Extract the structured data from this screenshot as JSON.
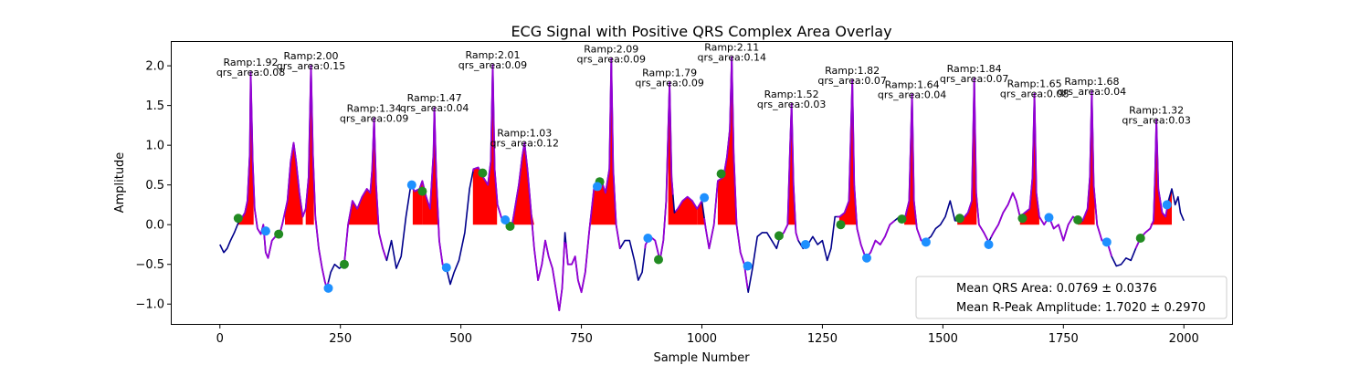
{
  "chart_data": {
    "type": "line",
    "title": "ECG Signal with Positive QRS Complex Area Overlay",
    "xlabel": "Sample Number",
    "ylabel": "Amplitude",
    "xlim": [
      -100,
      2100
    ],
    "ylim": [
      -1.25,
      2.3
    ],
    "xticks": [
      0,
      250,
      500,
      750,
      1000,
      1250,
      1500,
      1750,
      2000
    ],
    "yticks": [
      -1.0,
      -0.5,
      0.0,
      0.5,
      1.0,
      1.5,
      2.0
    ],
    "colors": {
      "signal": "#00008b",
      "qrs": "#9400d3",
      "area": "#ff0000",
      "onset": "#228b22",
      "offset": "#1e90ff"
    },
    "ecg_points": [
      [
        0,
        -0.25
      ],
      [
        8,
        -0.35
      ],
      [
        15,
        -0.3
      ],
      [
        22,
        -0.2
      ],
      [
        30,
        -0.1
      ],
      [
        38,
        0.02
      ],
      [
        45,
        0.08
      ],
      [
        52,
        0.15
      ],
      [
        57,
        0.3
      ],
      [
        62,
        0.9
      ],
      [
        64,
        1.92
      ],
      [
        68,
        0.8
      ],
      [
        72,
        0.2
      ],
      [
        78,
        -0.05
      ],
      [
        85,
        -0.12
      ],
      [
        90,
        0.0
      ],
      [
        95,
        -0.35
      ],
      [
        100,
        -0.42
      ],
      [
        108,
        -0.2
      ],
      [
        115,
        -0.15
      ],
      [
        120,
        -0.1
      ],
      [
        125,
        -0.1
      ],
      [
        130,
        0.02
      ],
      [
        140,
        0.3
      ],
      [
        147,
        0.8
      ],
      [
        153,
        1.03
      ],
      [
        158,
        0.8
      ],
      [
        165,
        0.4
      ],
      [
        172,
        0.1
      ],
      [
        178,
        0.2
      ],
      [
        184,
        0.6
      ],
      [
        189,
        2.0
      ],
      [
        193,
        0.9
      ],
      [
        198,
        0.1
      ],
      [
        205,
        -0.3
      ],
      [
        212,
        -0.55
      ],
      [
        218,
        -0.72
      ],
      [
        222,
        -0.8
      ],
      [
        230,
        -0.6
      ],
      [
        238,
        -0.5
      ],
      [
        248,
        -0.55
      ],
      [
        258,
        -0.5
      ],
      [
        266,
        0.0
      ],
      [
        275,
        0.3
      ],
      [
        285,
        0.2
      ],
      [
        295,
        0.35
      ],
      [
        305,
        0.45
      ],
      [
        312,
        0.4
      ],
      [
        316,
        0.7
      ],
      [
        320,
        1.34
      ],
      [
        324,
        0.5
      ],
      [
        330,
        -0.1
      ],
      [
        338,
        -0.3
      ],
      [
        346,
        -0.45
      ],
      [
        356,
        -0.2
      ],
      [
        366,
        -0.55
      ],
      [
        376,
        -0.4
      ],
      [
        386,
        0.1
      ],
      [
        396,
        0.5
      ],
      [
        404,
        0.42
      ],
      [
        414,
        0.45
      ],
      [
        420,
        0.55
      ],
      [
        428,
        0.35
      ],
      [
        436,
        0.2
      ],
      [
        443,
        0.9
      ],
      [
        445,
        1.47
      ],
      [
        449,
        0.6
      ],
      [
        455,
        -0.2
      ],
      [
        462,
        -0.5
      ],
      [
        470,
        -0.55
      ],
      [
        478,
        -0.75
      ],
      [
        486,
        -0.6
      ],
      [
        496,
        -0.45
      ],
      [
        508,
        -0.1
      ],
      [
        518,
        0.45
      ],
      [
        526,
        0.7
      ],
      [
        536,
        0.72
      ],
      [
        546,
        0.6
      ],
      [
        556,
        0.5
      ],
      [
        562,
        0.8
      ],
      [
        566,
        2.01
      ],
      [
        570,
        0.7
      ],
      [
        576,
        0.25
      ],
      [
        586,
        0.05
      ],
      [
        596,
        0.0
      ],
      [
        605,
        -0.05
      ],
      [
        612,
        0.2
      ],
      [
        620,
        0.5
      ],
      [
        627,
        0.85
      ],
      [
        632,
        1.03
      ],
      [
        638,
        0.7
      ],
      [
        645,
        0.2
      ],
      [
        652,
        -0.3
      ],
      [
        660,
        -0.7
      ],
      [
        668,
        -0.5
      ],
      [
        675,
        -0.2
      ],
      [
        682,
        -0.4
      ],
      [
        690,
        -0.55
      ],
      [
        698,
        -0.85
      ],
      [
        704,
        -1.08
      ],
      [
        710,
        -0.8
      ],
      [
        716,
        -0.1
      ],
      [
        722,
        -0.5
      ],
      [
        730,
        -0.5
      ],
      [
        737,
        -0.4
      ],
      [
        743,
        -0.7
      ],
      [
        750,
        -0.85
      ],
      [
        758,
        -0.6
      ],
      [
        766,
        -0.1
      ],
      [
        776,
        0.45
      ],
      [
        784,
        0.5
      ],
      [
        792,
        0.55
      ],
      [
        800,
        0.4
      ],
      [
        808,
        0.7
      ],
      [
        812,
        2.09
      ],
      [
        816,
        0.7
      ],
      [
        822,
        0.0
      ],
      [
        830,
        -0.3
      ],
      [
        840,
        -0.2
      ],
      [
        850,
        -0.2
      ],
      [
        860,
        -0.45
      ],
      [
        868,
        -0.7
      ],
      [
        876,
        -0.6
      ],
      [
        883,
        -0.25
      ],
      [
        893,
        -0.15
      ],
      [
        903,
        -0.2
      ],
      [
        913,
        -0.45
      ],
      [
        920,
        -0.2
      ],
      [
        926,
        0.3
      ],
      [
        933,
        1.79
      ],
      [
        937,
        0.6
      ],
      [
        943,
        0.15
      ],
      [
        950,
        0.2
      ],
      [
        960,
        0.3
      ],
      [
        970,
        0.35
      ],
      [
        980,
        0.3
      ],
      [
        990,
        0.2
      ],
      [
        1000,
        0.3
      ],
      [
        1008,
        -0.05
      ],
      [
        1015,
        -0.3
      ],
      [
        1025,
        0.0
      ],
      [
        1033,
        0.55
      ],
      [
        1045,
        0.6
      ],
      [
        1052,
        0.85
      ],
      [
        1058,
        1.2
      ],
      [
        1062,
        2.11
      ],
      [
        1066,
        0.9
      ],
      [
        1072,
        0.0
      ],
      [
        1080,
        -0.35
      ],
      [
        1088,
        -0.5
      ],
      [
        1096,
        -0.85
      ],
      [
        1105,
        -0.55
      ],
      [
        1115,
        -0.15
      ],
      [
        1125,
        -0.1
      ],
      [
        1135,
        -0.1
      ],
      [
        1145,
        -0.2
      ],
      [
        1155,
        -0.3
      ],
      [
        1162,
        -0.15
      ],
      [
        1170,
        -0.1
      ],
      [
        1178,
        0.0
      ],
      [
        1183,
        1.0
      ],
      [
        1186,
        1.52
      ],
      [
        1190,
        0.5
      ],
      [
        1195,
        -0.1
      ],
      [
        1200,
        -0.2
      ],
      [
        1210,
        -0.3
      ],
      [
        1220,
        -0.25
      ],
      [
        1230,
        -0.15
      ],
      [
        1240,
        -0.25
      ],
      [
        1250,
        -0.2
      ],
      [
        1260,
        -0.45
      ],
      [
        1268,
        -0.3
      ],
      [
        1276,
        0.1
      ],
      [
        1286,
        0.1
      ],
      [
        1296,
        0.15
      ],
      [
        1305,
        0.3
      ],
      [
        1312,
        1.82
      ],
      [
        1316,
        0.5
      ],
      [
        1322,
        -0.05
      ],
      [
        1330,
        -0.25
      ],
      [
        1340,
        -0.42
      ],
      [
        1350,
        -0.35
      ],
      [
        1360,
        -0.2
      ],
      [
        1370,
        -0.25
      ],
      [
        1380,
        -0.15
      ],
      [
        1390,
        0.0
      ],
      [
        1400,
        0.05
      ],
      [
        1410,
        0.1
      ],
      [
        1420,
        0.05
      ],
      [
        1430,
        0.3
      ],
      [
        1436,
        1.64
      ],
      [
        1440,
        0.3
      ],
      [
        1446,
        -0.05
      ],
      [
        1455,
        -0.2
      ],
      [
        1465,
        -0.2
      ],
      [
        1475,
        -0.15
      ],
      [
        1485,
        -0.05
      ],
      [
        1495,
        0.0
      ],
      [
        1505,
        0.1
      ],
      [
        1515,
        0.3
      ],
      [
        1525,
        0.05
      ],
      [
        1535,
        0.05
      ],
      [
        1545,
        0.1
      ],
      [
        1552,
        0.15
      ],
      [
        1560,
        0.3
      ],
      [
        1565,
        1.84
      ],
      [
        1569,
        0.4
      ],
      [
        1575,
        0.0
      ],
      [
        1585,
        -0.1
      ],
      [
        1595,
        -0.22
      ],
      [
        1605,
        -0.1
      ],
      [
        1615,
        0.0
      ],
      [
        1625,
        0.15
      ],
      [
        1635,
        0.25
      ],
      [
        1645,
        0.4
      ],
      [
        1652,
        0.3
      ],
      [
        1660,
        0.1
      ],
      [
        1670,
        0.15
      ],
      [
        1680,
        0.2
      ],
      [
        1686,
        0.6
      ],
      [
        1690,
        1.65
      ],
      [
        1694,
        0.4
      ],
      [
        1700,
        0.1
      ],
      [
        1710,
        0.0
      ],
      [
        1720,
        0.1
      ],
      [
        1730,
        -0.05
      ],
      [
        1740,
        0.0
      ],
      [
        1750,
        -0.2
      ],
      [
        1760,
        0.0
      ],
      [
        1770,
        0.1
      ],
      [
        1780,
        0.05
      ],
      [
        1790,
        0.05
      ],
      [
        1800,
        0.2
      ],
      [
        1805,
        0.6
      ],
      [
        1809,
        1.68
      ],
      [
        1813,
        0.5
      ],
      [
        1820,
        0.0
      ],
      [
        1830,
        -0.2
      ],
      [
        1840,
        -0.2
      ],
      [
        1850,
        -0.4
      ],
      [
        1860,
        -0.52
      ],
      [
        1870,
        -0.5
      ],
      [
        1880,
        -0.42
      ],
      [
        1890,
        -0.45
      ],
      [
        1900,
        -0.3
      ],
      [
        1910,
        -0.17
      ],
      [
        1920,
        -0.1
      ],
      [
        1930,
        -0.05
      ],
      [
        1937,
        0.05
      ],
      [
        1940,
        0.6
      ],
      [
        1943,
        1.32
      ],
      [
        1947,
        0.45
      ],
      [
        1955,
        0.15
      ],
      [
        1962,
        0.1
      ],
      [
        1968,
        0.3
      ],
      [
        1975,
        0.45
      ],
      [
        1982,
        0.25
      ],
      [
        1988,
        0.35
      ],
      [
        1993,
        0.15
      ],
      [
        2000,
        0.05
      ]
    ],
    "qrs_segments": [
      [
        40,
        95
      ],
      [
        95,
        120
      ],
      [
        120,
        185
      ],
      [
        185,
        225
      ],
      [
        258,
        292
      ],
      [
        292,
        345
      ],
      [
        398,
        405
      ],
      [
        405,
        470
      ],
      [
        525,
        545
      ],
      [
        545,
        592
      ],
      [
        592,
        610
      ],
      [
        610,
        715
      ],
      [
        718,
        788
      ],
      [
        788,
        830
      ],
      [
        882,
        940
      ],
      [
        945,
        1000
      ],
      [
        1005,
        1095
      ],
      [
        1160,
        1200
      ],
      [
        1280,
        1345
      ],
      [
        1345,
        1400
      ],
      [
        1420,
        1470
      ],
      [
        1530,
        1595
      ],
      [
        1600,
        1665
      ],
      [
        1665,
        1720
      ],
      [
        1720,
        1790
      ],
      [
        1790,
        1850
      ],
      [
        1900,
        1965
      ]
    ],
    "area_segments": [
      [
        38,
        70
      ],
      [
        135,
        172
      ],
      [
        178,
        195
      ],
      [
        262,
        330
      ],
      [
        400,
        420
      ],
      [
        420,
        470
      ],
      [
        525,
        575
      ],
      [
        600,
        660
      ],
      [
        660,
        770
      ],
      [
        770,
        822
      ],
      [
        930,
        990
      ],
      [
        990,
        1010
      ],
      [
        1033,
        1072
      ],
      [
        1150,
        1200
      ],
      [
        1285,
        1320
      ],
      [
        1420,
        1447
      ],
      [
        1530,
        1570
      ],
      [
        1660,
        1700
      ],
      [
        1780,
        1815
      ],
      [
        1910,
        1975
      ]
    ],
    "onsets": [
      [
        38,
        0.08
      ],
      [
        122,
        -0.12
      ],
      [
        258,
        -0.5
      ],
      [
        420,
        0.42
      ],
      [
        545,
        0.65
      ],
      [
        602,
        -0.02
      ],
      [
        788,
        0.54
      ],
      [
        910,
        -0.44
      ],
      [
        1040,
        0.64
      ],
      [
        1160,
        -0.14
      ],
      [
        1288,
        0.0
      ],
      [
        1415,
        0.07
      ],
      [
        1535,
        0.08
      ],
      [
        1665,
        0.08
      ],
      [
        1780,
        0.06
      ],
      [
        1910,
        -0.17
      ]
    ],
    "offsets": [
      [
        95,
        -0.08
      ],
      [
        225,
        -0.8
      ],
      [
        398,
        0.5
      ],
      [
        470,
        -0.54
      ],
      [
        592,
        0.06
      ],
      [
        783,
        0.48
      ],
      [
        888,
        -0.17
      ],
      [
        1005,
        0.34
      ],
      [
        1095,
        -0.52
      ],
      [
        1215,
        -0.25
      ],
      [
        1342,
        -0.42
      ],
      [
        1465,
        -0.22
      ],
      [
        1595,
        -0.25
      ],
      [
        1720,
        0.09
      ],
      [
        1840,
        -0.22
      ],
      [
        1965,
        0.25
      ]
    ],
    "annotations": [
      {
        "x": 64,
        "y": 1.92,
        "ramp": "Ramp:1.92",
        "area": "qrs_area:0.08"
      },
      {
        "x": 189,
        "y": 2.0,
        "ramp": "Ramp:2.00",
        "area": "qrs_area:0.15"
      },
      {
        "x": 320,
        "y": 1.34,
        "ramp": "Ramp:1.34",
        "area": "qrs_area:0.09"
      },
      {
        "x": 445,
        "y": 1.47,
        "ramp": "Ramp:1.47",
        "area": "qrs_area:0.04"
      },
      {
        "x": 566,
        "y": 2.01,
        "ramp": "Ramp:2.01",
        "area": "qrs_area:0.09"
      },
      {
        "x": 632,
        "y": 1.03,
        "ramp": "Ramp:1.03",
        "area": "qrs_area:0.12"
      },
      {
        "x": 812,
        "y": 2.09,
        "ramp": "Ramp:2.09",
        "area": "qrs_area:0.09"
      },
      {
        "x": 933,
        "y": 1.79,
        "ramp": "Ramp:1.79",
        "area": "qrs_area:0.09"
      },
      {
        "x": 1062,
        "y": 2.11,
        "ramp": "Ramp:2.11",
        "area": "qrs_area:0.14"
      },
      {
        "x": 1186,
        "y": 1.52,
        "ramp": "Ramp:1.52",
        "area": "qrs_area:0.03"
      },
      {
        "x": 1312,
        "y": 1.82,
        "ramp": "Ramp:1.82",
        "area": "qrs_area:0.07"
      },
      {
        "x": 1436,
        "y": 1.64,
        "ramp": "Ramp:1.64",
        "area": "qrs_area:0.04"
      },
      {
        "x": 1565,
        "y": 1.84,
        "ramp": "Ramp:1.84",
        "area": "qrs_area:0.07"
      },
      {
        "x": 1690,
        "y": 1.65,
        "ramp": "Ramp:1.65",
        "area": "qrs_area:0.08"
      },
      {
        "x": 1809,
        "y": 1.68,
        "ramp": "Ramp:1.68",
        "area": "qrs_area:0.04"
      },
      {
        "x": 1943,
        "y": 1.32,
        "ramp": "Ramp:1.32",
        "area": "qrs_area:0.03"
      }
    ],
    "legend": {
      "placement": "lower right",
      "entries": [
        "Mean QRS Area: 0.0769 ± 0.0376",
        "Mean R-Peak Amplitude: 1.7020 ± 0.2970"
      ]
    }
  }
}
